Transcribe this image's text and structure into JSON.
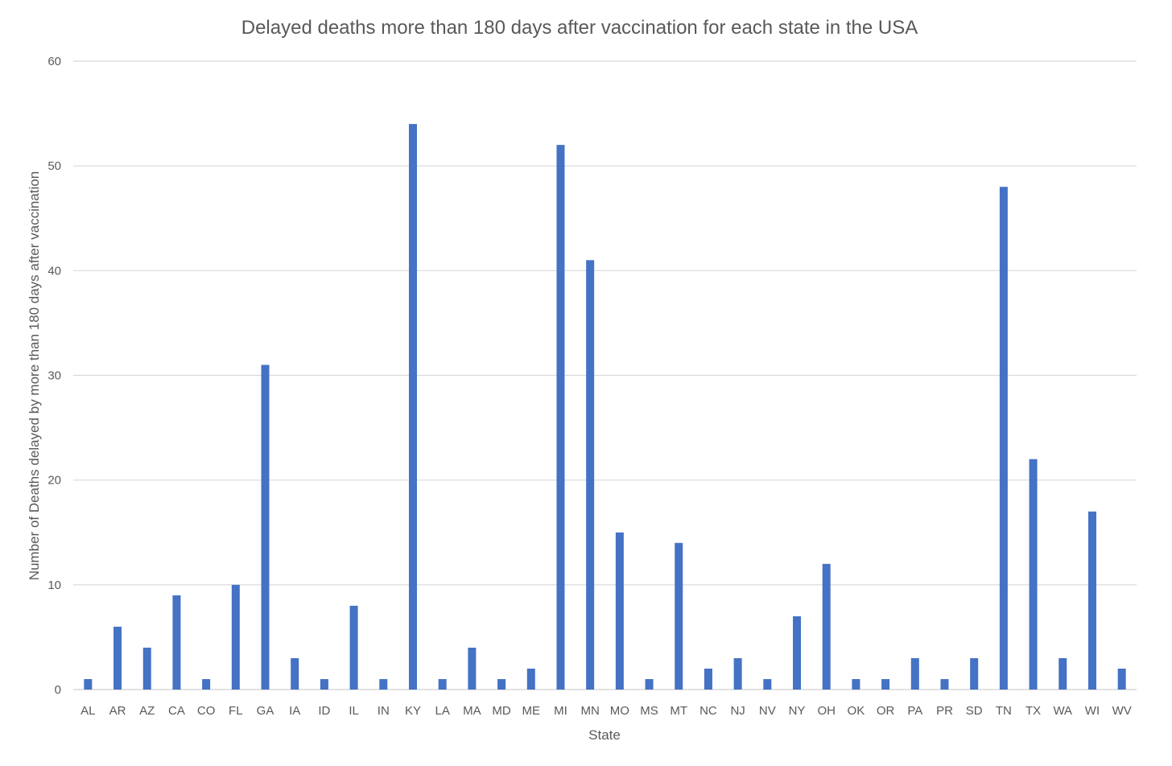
{
  "chart_data": {
    "type": "bar",
    "title": "Delayed deaths more than 180 days after vaccination for each state in the USA",
    "xlabel": "State",
    "ylabel": "Number of Deaths delayed by more than 180 days after vaccination",
    "ylim": [
      0,
      60
    ],
    "yticks": [
      0,
      10,
      20,
      30,
      40,
      50,
      60
    ],
    "grid": true,
    "legend": "none",
    "bar_color": "#4472C4",
    "grid_color": "#D9D9D9",
    "text_color": "#595959",
    "categories": [
      "AL",
      "AR",
      "AZ",
      "CA",
      "CO",
      "FL",
      "GA",
      "IA",
      "ID",
      "IL",
      "IN",
      "KY",
      "LA",
      "MA",
      "MD",
      "ME",
      "MI",
      "MN",
      "MO",
      "MS",
      "MT",
      "NC",
      "NJ",
      "NV",
      "NY",
      "OH",
      "OK",
      "OR",
      "PA",
      "PR",
      "SD",
      "TN",
      "TX",
      "WA",
      "WI",
      "WV"
    ],
    "values": [
      1,
      6,
      4,
      9,
      1,
      10,
      31,
      3,
      1,
      8,
      1,
      54,
      1,
      4,
      1,
      2,
      52,
      41,
      15,
      1,
      14,
      2,
      3,
      1,
      7,
      12,
      1,
      1,
      3,
      1,
      3,
      48,
      22,
      3,
      17,
      2
    ]
  }
}
